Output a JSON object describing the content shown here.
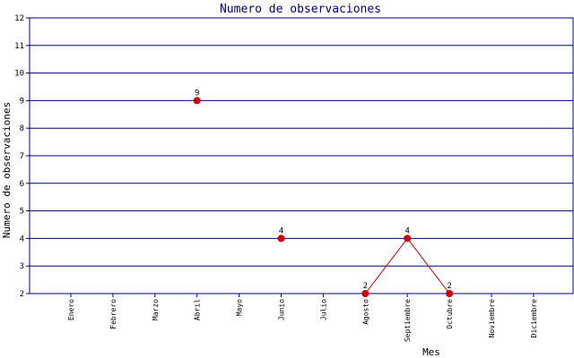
{
  "chart_data": {
    "type": "line",
    "title": "Numero de observaciones",
    "xlabel": "Mes",
    "ylabel": "Numero de observaciones",
    "categories": [
      "Enero",
      "Febrero",
      "Marzo",
      "Abril",
      "Mayo",
      "Junio",
      "Julio",
      "Agosto",
      "Septiembre",
      "Octubre",
      "Noviembre",
      "Diciembre"
    ],
    "series": [
      {
        "values": [
          null,
          null,
          null,
          9,
          null,
          4,
          null,
          2,
          4,
          2,
          null,
          null
        ]
      }
    ],
    "ylim": [
      2,
      12
    ],
    "yticks": [
      "2",
      "3",
      "4",
      "5",
      "6",
      "7",
      "8",
      "9",
      "10",
      "11",
      "12"
    ],
    "grid": true,
    "colors": {
      "grid": "#000080",
      "axis": "#000080",
      "title": "#000080",
      "series": "#cc0000",
      "text": "#000000"
    }
  }
}
